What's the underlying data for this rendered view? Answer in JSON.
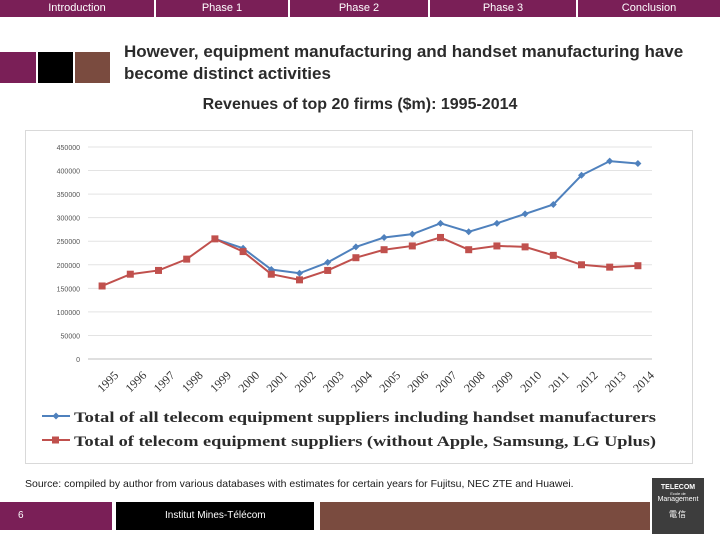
{
  "nav": {
    "tabs": [
      {
        "label": "Introduction"
      },
      {
        "label": "Phase 1"
      },
      {
        "label": "Phase 2"
      },
      {
        "label": "Phase 3"
      },
      {
        "label": "Conclusion"
      }
    ]
  },
  "slide": {
    "title": "However, equipment manufacturing and handset manufacturing have become distinct activities",
    "subtitle": "Revenues of top 20 firms ($m): 1995-2014",
    "source": "Source: compiled by author from various databases with estimates for certain years for Fujitsu, NEC ZTE and Huawei.",
    "page_number": "6",
    "institution": "Institut Mines-Télécom",
    "logo": {
      "line1": "TELECOM",
      "line2": "Ecole de",
      "line3": "Management",
      "line4": "電信"
    }
  },
  "colors": {
    "tab_bg": "#7a1f57",
    "series_blue": "#4f81bd",
    "series_red": "#c0504d",
    "deco_purple": "#7a1f57",
    "deco_black": "#000000",
    "deco_brown": "#7a4b3f"
  },
  "chart_data": {
    "type": "line",
    "title": "",
    "xlabel": "",
    "ylabel": "",
    "ylim": [
      0,
      450000
    ],
    "grid": true,
    "legend_position": "bottom",
    "y_ticks": [
      "0",
      "50000",
      "100000",
      "150000",
      "200000",
      "250000",
      "300000",
      "350000",
      "400000",
      "450000"
    ],
    "x": [
      "1995",
      "1996",
      "1997",
      "1998",
      "1999",
      "2000",
      "2001",
      "2002",
      "2003",
      "2004",
      "2005",
      "2006",
      "2007",
      "2008",
      "2009",
      "2010",
      "2011",
      "2012",
      "2013",
      "2014"
    ],
    "series": [
      {
        "name": "Total of all telecom equipment suppliers including handset manufacturers",
        "color": "#4f81bd",
        "marker": "diamond",
        "values": [
          null,
          null,
          null,
          null,
          255000,
          235000,
          190000,
          182000,
          205000,
          238000,
          258000,
          265000,
          288000,
          270000,
          288000,
          308000,
          328000,
          390000,
          420000,
          415000
        ]
      },
      {
        "name": "Total of telecom equipment suppliers (without Apple, Samsung, LG Uplus)",
        "color": "#c0504d",
        "marker": "square",
        "values": [
          155000,
          180000,
          188000,
          212000,
          255000,
          228000,
          180000,
          168000,
          188000,
          215000,
          232000,
          240000,
          258000,
          232000,
          240000,
          238000,
          220000,
          200000,
          195000,
          198000
        ]
      }
    ]
  }
}
